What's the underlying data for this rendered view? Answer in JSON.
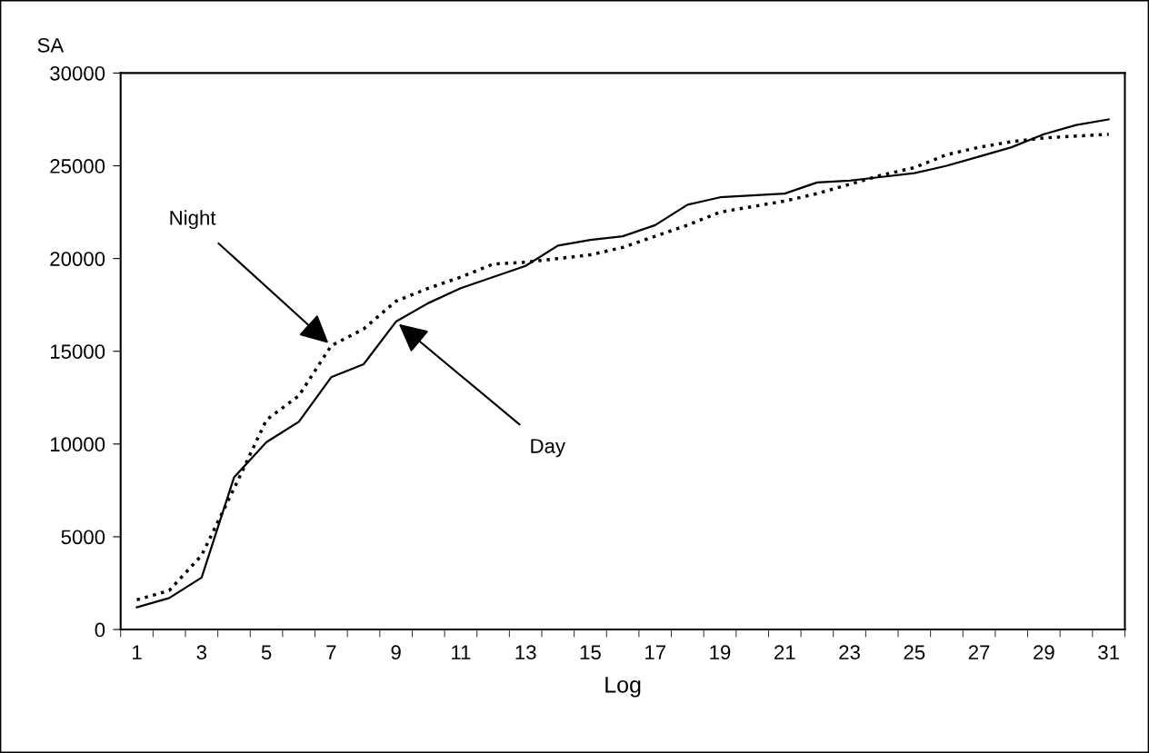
{
  "chart_data": {
    "type": "line",
    "xlabel": "Log",
    "ylabel": "SA",
    "categories": [
      "1",
      null,
      "3",
      null,
      "5",
      null,
      "7",
      null,
      "9",
      null,
      "11",
      null,
      "13",
      null,
      "15",
      null,
      "17",
      null,
      "19",
      null,
      "21",
      null,
      "23",
      null,
      "25",
      null,
      "27",
      null,
      "29",
      null,
      "31"
    ],
    "series": [
      {
        "color": "#000000",
        "line_style": "solid",
        "values": [
          1200,
          1700,
          2800,
          8200,
          10100,
          11200,
          13600,
          14300,
          16600,
          17600,
          18400,
          19000,
          19600,
          20700,
          21000,
          21200,
          21800,
          22900,
          23300,
          23400,
          23500,
          24100,
          24200,
          24400,
          24600,
          25000,
          25500,
          26000,
          26700,
          27200,
          27500
        ]
      },
      {
        "color": "#000000",
        "line_style": "dotted",
        "values": [
          1600,
          2100,
          4000,
          7600,
          11300,
          12600,
          15300,
          16200,
          17700,
          18400,
          19000,
          19700,
          19800,
          20000,
          20200,
          20600,
          21200,
          21800,
          22500,
          22800,
          23100,
          23500,
          24000,
          24500,
          24900,
          25600,
          26000,
          26300,
          26500,
          26600,
          26700
        ]
      }
    ],
    "ylim": [
      0,
      30000
    ],
    "yticks": [
      0,
      5000,
      10000,
      15000,
      20000,
      25000,
      30000
    ],
    "annotations": [
      {
        "text": "Night",
        "x": "7",
        "y": 15300
      },
      {
        "text": "Day",
        "x": "9",
        "y": 16600
      }
    ]
  }
}
